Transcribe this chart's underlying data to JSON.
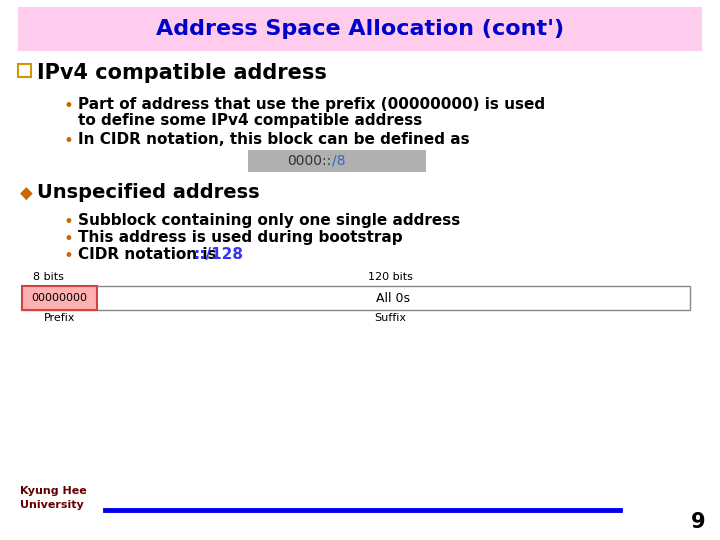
{
  "title": "Address Space Allocation (cont')",
  "title_color": "#0000cc",
  "title_bg_color": "#ffccee",
  "bg_color": "#ffffff",
  "bullet_q_color": "#cc9900",
  "bullet_q_text": "IPv4 compatible address",
  "sub_bullet_color": "#cc6600",
  "sub_bullet1a": "Part of address that use the prefix (00000000) is used",
  "sub_bullet1b": "to define some IPv4 compatible address",
  "sub_bullet2": "In CIDR notation, this block can be defined as",
  "cidr_box_text_black": "0000::",
  "cidr_box_text_blue": "/8",
  "cidr_box_bg": "#b0b0b0",
  "bullet_diamond_color": "#cc6600",
  "bullet_diamond_text": "Unspecified address",
  "sub_bullet3": "Subblock containing only one single address",
  "sub_bullet4": "This address is used during bootstrap",
  "sub_bullet5_black": "CIDR notation is ",
  "sub_bullet5_blue": "::/128",
  "sub_bullet5_blue_color": "#3333ff",
  "diagram_8bits_label": "8 bits",
  "diagram_120bits_label": "120 bits",
  "diagram_prefix_text": "00000000",
  "diagram_prefix_bg": "#ffb0b0",
  "diagram_suffix_text": "All 0s",
  "diagram_suffix_bg": "#ffffff",
  "diagram_border_color": "#888888",
  "diagram_prefix_border": "#cc4444",
  "diagram_prefix_label": "Prefix",
  "diagram_suffix_label": "Suffix",
  "footer_line_color": "#0000ee",
  "page_number": "9",
  "university_name": "Kyung Hee\nUniversity",
  "text_color": "#000000",
  "body_fontsize": 11,
  "title_fontsize": 16,
  "heading1_fontsize": 15,
  "heading2_fontsize": 14
}
